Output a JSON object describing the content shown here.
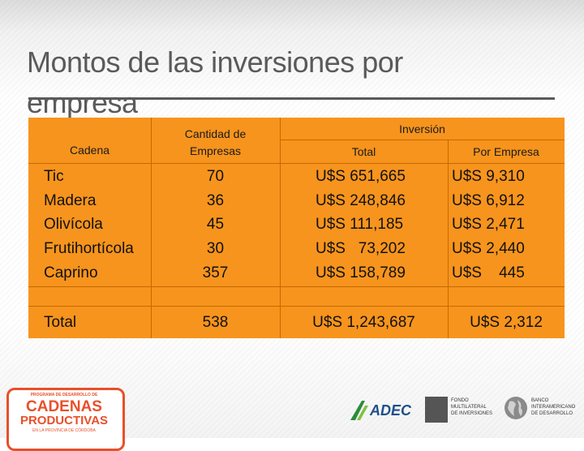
{
  "title": "Montos de las inversiones por empresa",
  "table": {
    "headers": {
      "cadena": "Cadena",
      "cantidad_line1": "Cantidad de",
      "cantidad_line2": "Empresas",
      "inversion": "Inversión",
      "total": "Total",
      "por_empresa": "Por Empresa"
    },
    "rows": [
      {
        "cadena": "Tic",
        "cantidad": "70",
        "total": "U$S 651,665",
        "por_empresa": "U$S 9,310"
      },
      {
        "cadena": "Madera",
        "cantidad": "36",
        "total": "U$S 248,846",
        "por_empresa": "U$S 6,912"
      },
      {
        "cadena": "Olivícola",
        "cantidad": "45",
        "total": "U$S 111,185",
        "por_empresa": "U$S 2,471"
      },
      {
        "cadena": "Frutihortícola",
        "cantidad": "30",
        "total": "U$S   73,202",
        "por_empresa": "U$S 2,440"
      },
      {
        "cadena": "Caprino",
        "cantidad": "357",
        "total": "U$S 158,789",
        "por_empresa": "U$S    445"
      }
    ],
    "total_row": {
      "label": "Total",
      "cantidad": "538",
      "total": "U$S 1,243,687",
      "por_empresa": "U$S 2,312"
    }
  },
  "footer": {
    "program_line1": "PROGRAMA DE DESARROLLO DE",
    "program_line2": "CADENAS",
    "program_line3": "PRODUCTIVAS",
    "program_line4": "EN LA PROVINCIA DE CÓRDOBA",
    "adec": "ADEC",
    "fomin_line1": "FONDO",
    "fomin_line2": "MULTILATERAL",
    "fomin_line3": "DE INVERSIONES",
    "bid_line1": "BANCO",
    "bid_line2": "INTERAMERICANO",
    "bid_line3": "DE DESARROLLO",
    "colors": {
      "orange": "#f7941d",
      "logo_red": "#e8502a",
      "adec_green": "#2e8b3a"
    }
  }
}
